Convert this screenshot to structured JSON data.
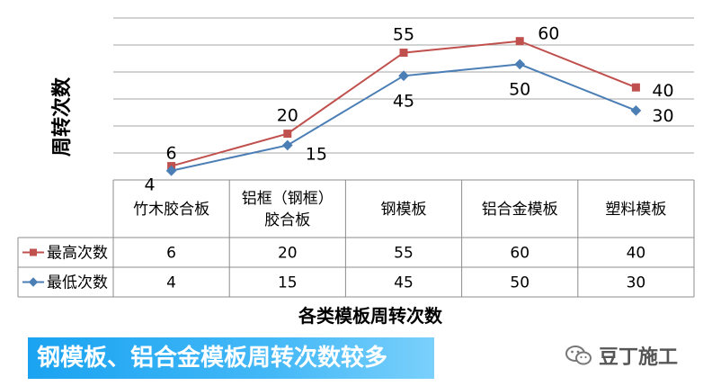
{
  "chart_data": {
    "type": "line",
    "ylabel": "周转次数",
    "xlabel": "各类模板周转次数",
    "categories": [
      [
        "竹木胶合板"
      ],
      [
        "铝框（钢框）",
        "胶合板"
      ],
      [
        "钢模板"
      ],
      [
        "铝合金模板"
      ],
      [
        "塑料模板"
      ]
    ],
    "ylim": [
      0,
      70
    ],
    "grid": true,
    "legend": "left-of-table",
    "series": [
      {
        "name": "最高次数",
        "values": [
          6,
          20,
          55,
          60,
          40
        ],
        "color": "#c0504d",
        "marker": "square"
      },
      {
        "name": "最低次数",
        "values": [
          4,
          15,
          45,
          50,
          30
        ],
        "color": "#4a7eb5",
        "marker": "diamond"
      }
    ]
  },
  "banner": {
    "text": "钢模板、铝合金模板周转次数较多"
  },
  "watermark": {
    "text": "豆丁施工",
    "icon": "wechat-icon"
  }
}
